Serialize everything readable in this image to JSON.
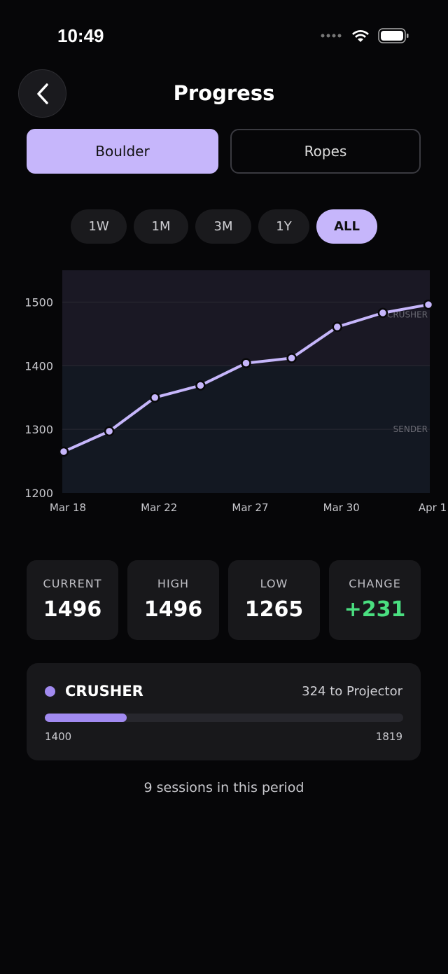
{
  "status": {
    "time": "10:49"
  },
  "header": {
    "title": "Progress",
    "back_icon": "chevron-left-icon"
  },
  "segments": [
    {
      "label": "Boulder",
      "active": true
    },
    {
      "label": "Ropes",
      "active": false
    }
  ],
  "ranges": [
    {
      "label": "1W",
      "active": false
    },
    {
      "label": "1M",
      "active": false
    },
    {
      "label": "3M",
      "active": false
    },
    {
      "label": "1Y",
      "active": false
    },
    {
      "label": "ALL",
      "active": true
    }
  ],
  "colors": {
    "accent": "#c6b6fb",
    "line": "#c6b6fb",
    "positive": "#4ade80",
    "tier": "#a18af0"
  },
  "chart_data": {
    "type": "line",
    "x_tick_labels": [
      "Mar 18",
      "Mar 22",
      "Mar 27",
      "Mar 30",
      "Apr 1"
    ],
    "x_tick_index": [
      0,
      2,
      4,
      6,
      8
    ],
    "values": [
      1265,
      1297,
      1350,
      1369,
      1404,
      1412,
      1461,
      1483,
      1496
    ],
    "yticks": [
      1200,
      1300,
      1400,
      1500
    ],
    "ylim": [
      1200,
      1550
    ],
    "grid": true,
    "bands": [
      {
        "name": "CRUSHER",
        "from": 1400,
        "to": 1550,
        "color": "#1a1824"
      },
      {
        "name": "SENDER",
        "from": 1200,
        "to": 1400,
        "color": "#131822"
      }
    ],
    "band_labels": [
      {
        "text": "CRUSHER",
        "y": 1480
      },
      {
        "text": "SENDER",
        "y": 1300
      }
    ]
  },
  "stats": [
    {
      "label": "CURRENT",
      "value": "1496"
    },
    {
      "label": "HIGH",
      "value": "1496"
    },
    {
      "label": "LOW",
      "value": "1265"
    },
    {
      "label": "CHANGE",
      "value": "+231",
      "positive": true
    }
  ],
  "tier": {
    "name": "CRUSHER",
    "next": "324 to Projector",
    "min": "1400",
    "max": "1819",
    "progress": 0.229
  },
  "footer": {
    "sessions": "9 sessions in this period"
  }
}
